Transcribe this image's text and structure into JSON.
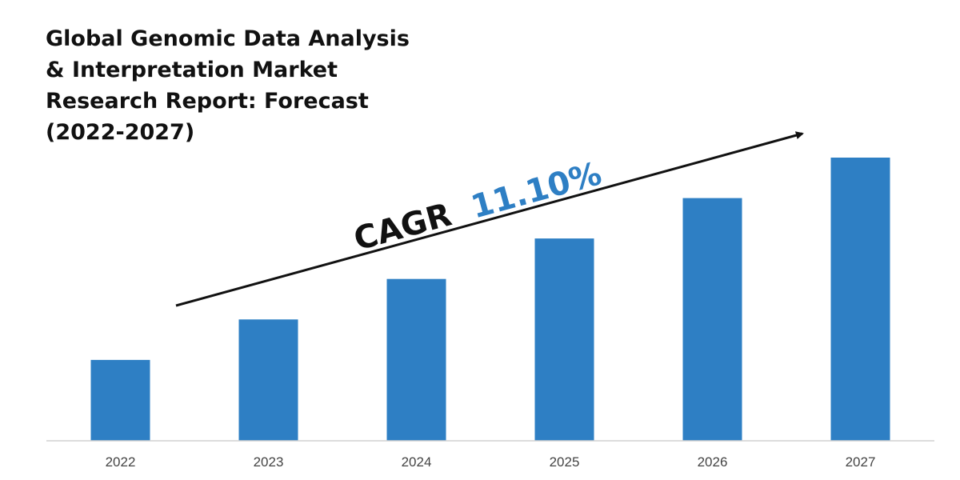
{
  "chart_data": {
    "type": "bar",
    "title_lines": [
      "Global Genomic Data Analysis",
      "& Interpretation Market",
      "Research Report: Forecast",
      "(2022-2027)"
    ],
    "categories": [
      "2022",
      "2023",
      "2024",
      "2025",
      "2026",
      "2027"
    ],
    "values": [
      20,
      30,
      40,
      50,
      60,
      70
    ],
    "ylim": [
      0,
      70
    ],
    "grid": false,
    "legend": "none",
    "bar_color": "#2E7FC4",
    "annotation": {
      "prefix": "CAGR",
      "value": "11.10%",
      "prefix_color": "#111111",
      "value_color": "#2E7FC4"
    }
  }
}
